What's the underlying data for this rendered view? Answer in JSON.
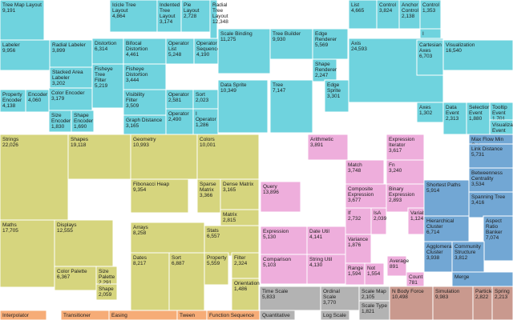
{
  "chart_data": {
    "type": "treemap",
    "title": "",
    "groups": [
      {
        "name": "cyan",
        "color": "#6fd3de",
        "cells": [
          {
            "label": "Tree Map Layout",
            "value": 9191
          },
          {
            "label": "Icicle Tree Layout",
            "value": 4864
          },
          {
            "label": "Indented Tree Layout",
            "value": 3174
          },
          {
            "label": "Pie Layout",
            "value": 2728
          },
          {
            "label": "Radial Tree Layout",
            "value": 12348
          },
          {
            "label": "Labeler",
            "value": 9956
          },
          {
            "label": "Radial Labeler",
            "value": 3899
          },
          {
            "label": "Stacked Area Labeler",
            "value": 3202
          },
          {
            "label": "Property Encoder",
            "value": 4138
          },
          {
            "label": "Encoder",
            "value": 4060
          },
          {
            "label": "Color Encoder",
            "value": 3179
          },
          {
            "label": "Size Encoder",
            "value": 1830
          },
          {
            "label": "Shape Encoder",
            "value": 1690
          },
          {
            "label": "Distortion",
            "value": 6314
          },
          {
            "label": "Bifocal Distortion",
            "value": 4461
          },
          {
            "label": "Fisheye Distortion",
            "value": 3444
          },
          {
            "label": "Fisheye Tree Filter",
            "value": 5219
          },
          {
            "label": "Visibility Filter",
            "value": 3509
          },
          {
            "label": "Graph Distance Filter",
            "value": 3165
          },
          {
            "label": "Operator List",
            "value": 5248
          },
          {
            "label": "Operator Sequence",
            "value": 4190
          },
          {
            "label": "Operator Switch",
            "value": 2581
          },
          {
            "label": "Sort Operator",
            "value": 2023
          },
          {
            "label": "Operator",
            "value": 2490
          },
          {
            "label": "I Operator",
            "value": 1286
          },
          {
            "label": "Scale Binding",
            "value": 11275
          },
          {
            "label": "Tree Builder",
            "value": 9930
          },
          {
            "label": "Edge Renderer",
            "value": 5569
          },
          {
            "label": "Shape Renderer",
            "value": 2247
          },
          {
            "label": "Data Sprite",
            "value": 10349
          },
          {
            "label": "Tree",
            "value": 7147
          },
          {
            "label": "Edge Sprite",
            "value": 3301
          },
          {
            "label": "List",
            "value": 4665
          },
          {
            "label": "Control",
            "value": 3824
          },
          {
            "label": "Anchor Control",
            "value": 2138
          },
          {
            "label": "Control",
            "value": 1353
          },
          {
            "label": "I Control",
            "value": 0
          },
          {
            "label": "Axis",
            "value": 24593
          },
          {
            "label": "Cartesian Axes",
            "value": 6703
          },
          {
            "label": "Visualization",
            "value": 16540
          },
          {
            "label": "Axes",
            "value": 1302
          },
          {
            "label": "Data Event",
            "value": 2313
          },
          {
            "label": "Selection Event",
            "value": 1880
          },
          {
            "label": "Tooltip Event",
            "value": 1701
          },
          {
            "label": "Visualization Event",
            "value": 0
          }
        ]
      },
      {
        "name": "olive",
        "color": "#d6d57e",
        "cells": [
          {
            "label": "Strings",
            "value": 22026
          },
          {
            "label": "Shapes",
            "value": 19118
          },
          {
            "label": "Geometry",
            "value": 10993
          },
          {
            "label": "Colors",
            "value": 10001
          },
          {
            "label": "Fibonacci Heap",
            "value": 9354
          },
          {
            "label": "Sparse Matrix",
            "value": 3366
          },
          {
            "label": "Dense Matrix",
            "value": 3165
          },
          {
            "label": "Matrix",
            "value": 2815
          },
          {
            "label": "Maths",
            "value": 17705
          },
          {
            "label": "Displays",
            "value": 12555
          },
          {
            "label": "Arrays",
            "value": 8258
          },
          {
            "label": "Stats",
            "value": 6557
          },
          {
            "label": "Color Palette",
            "value": 6367
          },
          {
            "label": "Size Palette",
            "value": 2291
          },
          {
            "label": "Shape Palette",
            "value": 2059
          },
          {
            "label": "Dates",
            "value": 8217
          },
          {
            "label": "Sort",
            "value": 6887
          },
          {
            "label": "Property",
            "value": 5559
          },
          {
            "label": "Filter",
            "value": 2324
          },
          {
            "label": "Orientation",
            "value": 1486
          }
        ]
      },
      {
        "name": "pink",
        "color": "#eeaedc",
        "cells": [
          {
            "label": "Arithmetic",
            "value": 3891
          },
          {
            "label": "Expression Iterator",
            "value": 3617
          },
          {
            "label": "Match",
            "value": 3748
          },
          {
            "label": "Fn",
            "value": 3240
          },
          {
            "label": "Query",
            "value": 13896
          },
          {
            "label": "Composite Expression",
            "value": 3677
          },
          {
            "label": "Binary Expression",
            "value": 2893
          },
          {
            "label": "If",
            "value": 2732
          },
          {
            "label": "IsA",
            "value": 2039
          },
          {
            "label": "Literal",
            "value": 1214
          },
          {
            "label": "Variable",
            "value": 1124
          },
          {
            "label": "Expression",
            "value": 5130
          },
          {
            "label": "Date Util",
            "value": 4141
          },
          {
            "label": "Variance",
            "value": 1876
          },
          {
            "label": "Comparison",
            "value": 5103
          },
          {
            "label": "String Util",
            "value": 4130
          },
          {
            "label": "Range",
            "value": 1594
          },
          {
            "label": "Not",
            "value": 1554
          },
          {
            "label": "Average",
            "value": 891
          },
          {
            "label": "Count",
            "value": 781
          }
        ]
      },
      {
        "name": "blue",
        "color": "#72a7d4",
        "cells": [
          {
            "label": "Max Flow Min Cut",
            "value": 7840
          },
          {
            "label": "Link Distance",
            "value": 5731
          },
          {
            "label": "Betweenness Centrality",
            "value": 3534
          },
          {
            "label": "Shortest Paths",
            "value": 5914
          },
          {
            "label": "Spanning Tree",
            "value": 3416
          },
          {
            "label": "Hierarchical Cluster",
            "value": 6714
          },
          {
            "label": "Aspect Ratio Banker",
            "value": 7074
          },
          {
            "label": "Agglomerative Cluster",
            "value": 3938
          },
          {
            "label": "Community Structure",
            "value": 3812
          },
          {
            "label": "Merge",
            "value": 0
          }
        ]
      },
      {
        "name": "gray",
        "color": "#b3b3b3",
        "cells": [
          {
            "label": "Time Scale",
            "value": 5833
          },
          {
            "label": "Ordinal Scale",
            "value": 3770
          },
          {
            "label": "Scale Map",
            "value": 2105
          },
          {
            "label": "Scale Type",
            "value": 1821
          },
          {
            "label": "Quantitative Scale",
            "value": 0
          },
          {
            "label": "Log Scale",
            "value": 0
          }
        ]
      },
      {
        "name": "brown",
        "color": "#c9998e",
        "cells": [
          {
            "label": "N Body Force",
            "value": 10498
          },
          {
            "label": "Simulation",
            "value": 9983
          },
          {
            "label": "Particle",
            "value": 2822
          },
          {
            "label": "Spring",
            "value": 2213
          }
        ]
      },
      {
        "name": "orange",
        "color": "#f6ac77",
        "cells": [
          {
            "label": "Interpolator",
            "value": 0
          },
          {
            "label": "Transitioner",
            "value": 0
          },
          {
            "label": "Easing",
            "value": 0
          },
          {
            "label": "Tween",
            "value": 0
          },
          {
            "label": "Function Sequence",
            "value": 0
          }
        ]
      }
    ]
  }
}
